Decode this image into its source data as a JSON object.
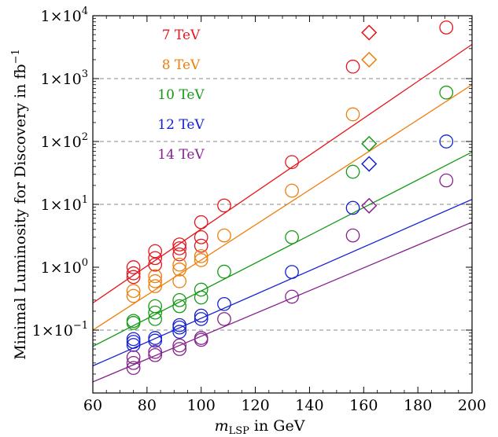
{
  "chart_data": {
    "type": "scatter",
    "xlabel_main": "m",
    "xlabel_sub": "LSP",
    "xlabel_rest": " in GeV",
    "ylabel_main": "Minimal Luminosity for Discovery in fb",
    "ylabel_sup": "−1",
    "y_scale": "log",
    "xlim": [
      60,
      200
    ],
    "ylim": [
      0.01,
      10000
    ],
    "x_ticks": [
      60,
      80,
      100,
      120,
      140,
      160,
      180,
      200
    ],
    "y_ticks": [
      {
        "value": 0.1,
        "mant": "1×10",
        "exp": "−1"
      },
      {
        "value": 1,
        "mant": "1×10",
        "exp": "0"
      },
      {
        "value": 10,
        "mant": "1×10",
        "exp": "1"
      },
      {
        "value": 100,
        "mant": "1×10",
        "exp": "2"
      },
      {
        "value": 1000,
        "mant": "1×10",
        "exp": "3"
      },
      {
        "value": 10000,
        "mant": "1×10",
        "exp": "4"
      }
    ],
    "grid": "dashed horizontal lines at 0.1, 10, 100, 1000",
    "legend_position": "top-left",
    "series": [
      {
        "name": "7 TeV",
        "color": "#e8141c",
        "fit_line": [
          [
            60,
            0.27
          ],
          [
            200,
            3500
          ]
        ],
        "circles": [
          [
            75,
            0.8
          ],
          [
            75,
            1.0
          ],
          [
            75,
            0.7
          ],
          [
            83,
            1.4
          ],
          [
            83,
            1.8
          ],
          [
            83,
            1.1
          ],
          [
            92,
            1.6
          ],
          [
            92,
            2.3
          ],
          [
            92,
            2.0
          ],
          [
            100,
            5.2
          ],
          [
            100,
            3.0
          ],
          [
            100,
            2.2
          ],
          [
            108.5,
            9.6
          ],
          [
            133.5,
            47
          ],
          [
            156,
            1550
          ],
          [
            190.5,
            6500
          ]
        ],
        "diamonds": [
          [
            162,
            5400
          ]
        ]
      },
      {
        "name": "8 TeV",
        "color": "#ef7d0a",
        "fit_line": [
          [
            60,
            0.1
          ],
          [
            200,
            800
          ]
        ],
        "circles": [
          [
            75,
            0.42
          ],
          [
            75,
            0.35
          ],
          [
            83,
            0.72
          ],
          [
            83,
            0.6
          ],
          [
            83,
            0.5
          ],
          [
            92,
            0.92
          ],
          [
            92,
            1.1
          ],
          [
            92,
            0.6
          ],
          [
            100,
            1.3
          ],
          [
            100,
            1.5
          ],
          [
            108.5,
            3.2
          ],
          [
            133.5,
            16.5
          ],
          [
            156,
            270
          ]
        ],
        "diamonds": [
          [
            162,
            2000
          ]
        ]
      },
      {
        "name": "10 TeV",
        "color": "#159a14",
        "fit_line": [
          [
            60,
            0.055
          ],
          [
            200,
            68
          ]
        ],
        "circles": [
          [
            75,
            0.13
          ],
          [
            75,
            0.14
          ],
          [
            83,
            0.24
          ],
          [
            83,
            0.19
          ],
          [
            83,
            0.15
          ],
          [
            92,
            0.3
          ],
          [
            92,
            0.24
          ],
          [
            100,
            0.44
          ],
          [
            100,
            0.33
          ],
          [
            108.5,
            0.85
          ],
          [
            133.5,
            3.0
          ],
          [
            156,
            33
          ],
          [
            190.5,
            600
          ]
        ],
        "diamonds": [
          [
            162,
            92
          ]
        ]
      },
      {
        "name": "12 TeV",
        "color": "#1320d4",
        "fit_line": [
          [
            60,
            0.027
          ],
          [
            200,
            12
          ]
        ],
        "circles": [
          [
            75,
            0.072
          ],
          [
            75,
            0.058
          ],
          [
            75,
            0.065
          ],
          [
            83,
            0.075
          ],
          [
            83,
            0.068
          ],
          [
            92,
            0.11
          ],
          [
            92,
            0.094
          ],
          [
            92,
            0.12
          ],
          [
            100,
            0.15
          ],
          [
            100,
            0.17
          ],
          [
            108.5,
            0.26
          ],
          [
            133.5,
            0.84
          ],
          [
            156,
            8.8
          ],
          [
            190.5,
            100
          ]
        ],
        "diamonds": [
          [
            162,
            44
          ]
        ]
      },
      {
        "name": "14 TeV",
        "color": "#86218e",
        "fit_line": [
          [
            60,
            0.015
          ],
          [
            200,
            5.2
          ]
        ],
        "circles": [
          [
            75,
            0.037
          ],
          [
            75,
            0.03
          ],
          [
            75,
            0.025
          ],
          [
            83,
            0.04
          ],
          [
            83,
            0.045
          ],
          [
            92,
            0.057
          ],
          [
            92,
            0.05
          ],
          [
            100,
            0.075
          ],
          [
            100,
            0.07
          ],
          [
            108.5,
            0.15
          ],
          [
            133.5,
            0.34
          ],
          [
            156,
            3.2
          ],
          [
            190.5,
            24
          ]
        ],
        "diamonds": [
          [
            162,
            9.5
          ]
        ]
      }
    ]
  }
}
